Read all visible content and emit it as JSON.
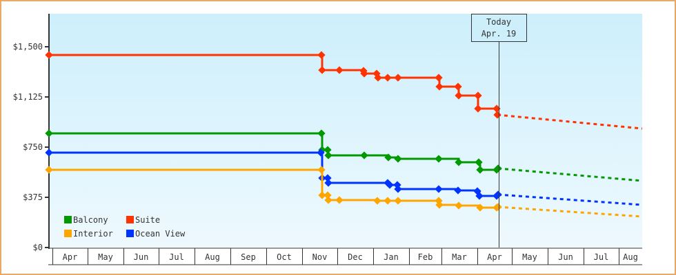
{
  "chart_data": {
    "type": "line",
    "title": "",
    "xlabel": "",
    "ylabel": "",
    "ylim": [
      0,
      1750
    ],
    "y_ticks": [
      {
        "label": "$0",
        "value": 0
      },
      {
        "label": "$375",
        "value": 375
      },
      {
        "label": "$750",
        "value": 750
      },
      {
        "label": "$1,125",
        "value": 1125
      },
      {
        "label": "$1,500",
        "value": 1500
      }
    ],
    "x_ticks": [
      "Apr",
      "May",
      "Jun",
      "Jul",
      "Aug",
      "Sep",
      "Oct",
      "Nov",
      "Dec",
      "Jan",
      "Feb",
      "Mar",
      "Apr",
      "May",
      "Jun",
      "Jul",
      "Aug"
    ],
    "legend": [
      {
        "name": "Balcony",
        "color": "#009900"
      },
      {
        "name": "Suite",
        "color": "#ff3300"
      },
      {
        "name": "Interior",
        "color": "#ffa500"
      },
      {
        "name": "Ocean View",
        "color": "#0033ff"
      }
    ],
    "legend_position": "bottom-left inside plot",
    "grid": false,
    "today_marker": {
      "line1": "Today",
      "line2": "Apr. 19"
    },
    "series": [
      {
        "name": "Suite",
        "color": "#ff3300",
        "points": [
          [
            "Apr",
            1450
          ],
          [
            "Nov",
            1450
          ],
          [
            "Nov",
            1340
          ],
          [
            "Dec",
            1340
          ],
          [
            "Dec",
            1315
          ],
          [
            "Jan",
            1295
          ],
          [
            "Jan",
            1290
          ],
          [
            "Feb",
            1290
          ],
          [
            "Feb",
            1225
          ],
          [
            "Mar",
            1225
          ],
          [
            "Mar",
            1150
          ],
          [
            "Apr",
            1150
          ],
          [
            "Apr",
            1050
          ],
          [
            "Apr 19",
            1000
          ]
        ],
        "projection": [
          [
            "Apr 19",
            1000
          ],
          [
            "Aug",
            890
          ]
        ]
      },
      {
        "name": "Balcony",
        "color": "#009900",
        "points": [
          [
            "Apr",
            855
          ],
          [
            "Nov",
            855
          ],
          [
            "Nov",
            725
          ],
          [
            "Dec",
            690
          ],
          [
            "Jan",
            680
          ],
          [
            "Jan",
            670
          ],
          [
            "Feb",
            665
          ],
          [
            "Mar",
            650
          ],
          [
            "Apr",
            645
          ],
          [
            "Apr",
            585
          ],
          [
            "Apr 19",
            585
          ]
        ],
        "projection": [
          [
            "Apr 19",
            590
          ],
          [
            "Aug",
            500
          ]
        ]
      },
      {
        "name": "Ocean View",
        "color": "#0033ff",
        "points": [
          [
            "Apr",
            710
          ],
          [
            "Nov",
            710
          ],
          [
            "Nov",
            515
          ],
          [
            "Nov",
            480
          ],
          [
            "Jan",
            480
          ],
          [
            "Jan",
            440
          ],
          [
            "Feb",
            440
          ],
          [
            "Mar",
            430
          ],
          [
            "Apr",
            425
          ],
          [
            "Apr",
            385
          ],
          [
            "Apr 19",
            390
          ]
        ],
        "projection": [
          [
            "Apr 19",
            390
          ],
          [
            "Aug",
            315
          ]
        ]
      },
      {
        "name": "Interior",
        "color": "#ffa500",
        "points": [
          [
            "Apr",
            580
          ],
          [
            "Nov",
            580
          ],
          [
            "Nov",
            390
          ],
          [
            "Nov",
            350
          ],
          [
            "Jan",
            350
          ],
          [
            "Feb",
            345
          ],
          [
            "Feb",
            315
          ],
          [
            "Mar",
            310
          ],
          [
            "Apr",
            300
          ],
          [
            "Apr 19",
            300
          ]
        ],
        "projection": [
          [
            "Apr 19",
            300
          ],
          [
            "Aug",
            230
          ]
        ]
      }
    ]
  }
}
